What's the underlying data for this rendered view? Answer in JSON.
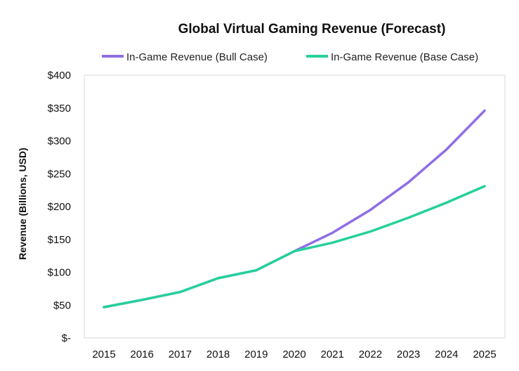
{
  "chart_data": {
    "type": "line",
    "title": "Global Virtual Gaming Revenue (Forecast)",
    "xlabel": "",
    "ylabel": "Revenue (Billions, USD)",
    "x": [
      "2015",
      "2016",
      "2017",
      "2018",
      "2019",
      "2020",
      "2021",
      "2022",
      "2023",
      "2024",
      "2025"
    ],
    "ylim": [
      0,
      400
    ],
    "yticks": [
      0,
      50,
      100,
      150,
      200,
      250,
      300,
      350,
      400
    ],
    "ytick_labels": [
      "$-",
      "$50",
      "$100",
      "$150",
      "$200",
      "$250",
      "$300",
      "$350",
      "$400"
    ],
    "grid": false,
    "legend_position": "top",
    "series": [
      {
        "name": "In-Game Revenue (Bull Case)",
        "color": "#8f6ee6",
        "values": [
          47,
          58,
          70,
          91,
          103,
          132,
          160,
          195,
          237,
          287,
          346
        ]
      },
      {
        "name": "In-Game Revenue (Base Case)",
        "color": "#25d09b",
        "values": [
          47,
          58,
          70,
          91,
          103,
          132,
          145,
          162,
          183,
          206,
          231
        ]
      }
    ]
  }
}
